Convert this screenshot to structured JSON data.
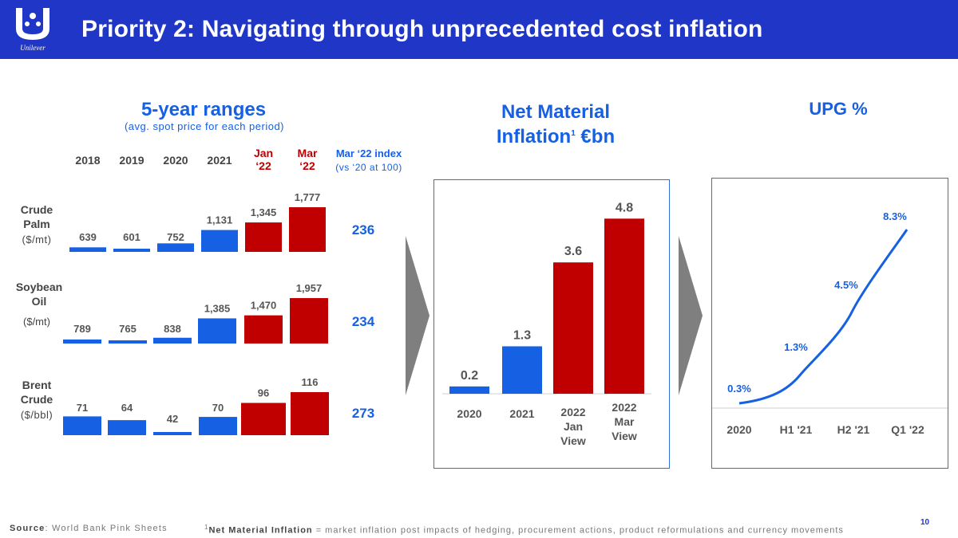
{
  "header": {
    "title": "Priority 2: Navigating through unprecedented cost inflation",
    "logo_text": "Unilever",
    "bg_color": "#1f36c7"
  },
  "colors": {
    "blue": "#1560e3",
    "red": "#c00000"
  },
  "ranges": {
    "title": "5-year ranges",
    "subtitle": "(avg. spot price for each period)",
    "columns": [
      {
        "label": "2018",
        "color": "gray"
      },
      {
        "label": "2019",
        "color": "gray"
      },
      {
        "label": "2020",
        "color": "gray"
      },
      {
        "label": "2021",
        "color": "gray"
      },
      {
        "label": "Jan\n‘22",
        "color": "red"
      },
      {
        "label": "Mar\n‘22",
        "color": "red"
      }
    ],
    "index_header": "Mar ‘22  index",
    "index_subheader": "(vs ‘20 at 100)",
    "rows": [
      {
        "name": "Crude\nPalm",
        "unit": "($/mt)",
        "values": [
          639,
          601,
          752,
          1131,
          1345,
          1777
        ],
        "labels": [
          "639",
          "601",
          "752",
          "1,131",
          "1,345",
          "1,777"
        ],
        "index": "236"
      },
      {
        "name": "Soybean\nOil",
        "unit": "($/mt)",
        "values": [
          789,
          765,
          838,
          1385,
          1470,
          1957
        ],
        "labels": [
          "789",
          "765",
          "838",
          "1,385",
          "1,470",
          "1,957"
        ],
        "index": "234"
      },
      {
        "name": "Brent\nCrude",
        "unit": "($/bbl)",
        "values": [
          71,
          64,
          42,
          70,
          96,
          116
        ],
        "labels": [
          "71",
          "64",
          "42",
          "70",
          "96",
          "116"
        ],
        "index": "273"
      }
    ]
  },
  "nmi": {
    "title": "Net Material\nInflation",
    "title_sup": "1",
    "title_suffix": " €bn"
  },
  "upg": {
    "title": "UPG %"
  },
  "chart_data": [
    {
      "type": "bar",
      "title": "Net Material Inflation1 €bn",
      "categories": [
        "2020",
        "2021",
        "2022\nJan\nView",
        "2022\nMar\nView"
      ],
      "values": [
        0.2,
        1.3,
        3.6,
        4.8
      ],
      "labels": [
        "0.2",
        "1.3",
        "3.6",
        "4.8"
      ],
      "colors": [
        "blue",
        "blue",
        "red",
        "red"
      ],
      "ylim": [
        0,
        5.2
      ]
    },
    {
      "type": "line",
      "title": "UPG %",
      "categories": [
        "2020",
        "H1 '21",
        "H2 '21",
        "Q1 '22"
      ],
      "values": [
        0.3,
        1.3,
        4.5,
        8.3
      ],
      "labels": [
        "0.3%",
        "1.3%",
        "4.5%",
        "8.3%"
      ],
      "ylim": [
        0,
        9
      ]
    }
  ],
  "footer": {
    "source_label": "Source",
    "source_text": ": World Bank Pink Sheets",
    "note_sup": "1",
    "note_label": "Net Material Inflation",
    "note_text": " = market inflation post impacts of hedging, procurement actions, product reformulations and currency movements",
    "page_number": "10"
  }
}
